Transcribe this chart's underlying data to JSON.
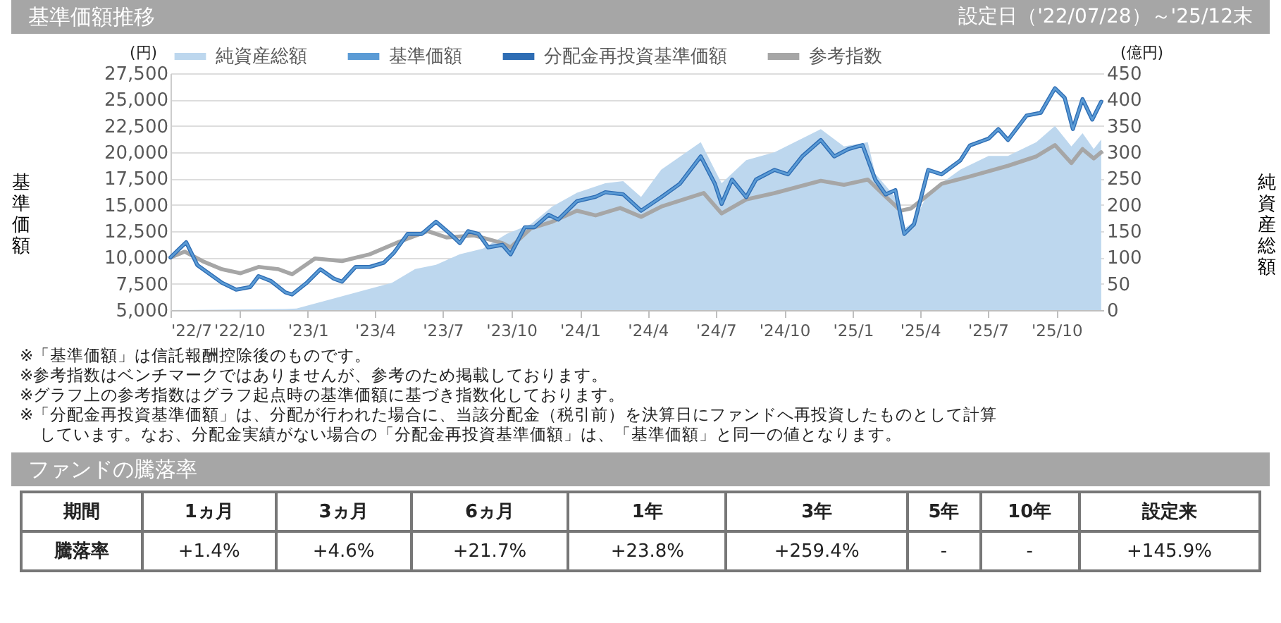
{
  "chart_data": [
    {
      "type": "line",
      "title": "基準価額推移",
      "subtitle": "設定日（'22/07/28）～'25/12末",
      "ylabel": "基準価額",
      "y2label": "純資産総額",
      "annotations": [
        "(円)",
        "(億円)",
        "※「基準価額」は信託報酬控除後のものです。",
        "※参考指数はベンチマークではありませんが、参考のため掲載しております。",
        "※グラフ上の参考指数はグラフ起点時の基準価額に基づき指数化しております。",
        "※「分配金再投資基準価額」は、分配が行われた場合に、当該分配金（税引前）を決算日にファンドへ再投資したものとして計算しています。なお、分配金実績がない場合の「分配金再投資基準価額」は、「基準価額」と同一の値となります。"
      ],
      "xlim": [
        "2022-07-28",
        "2025-12-30"
      ],
      "xticks": [
        {
          "value": "2022-07-28",
          "label": "'22/7"
        },
        {
          "value": "2022-10-28",
          "label": "'22/10"
        },
        {
          "value": "2023-01-28",
          "label": "'23/1"
        },
        {
          "value": "2023-04-28",
          "label": "'23/4"
        },
        {
          "value": "2023-07-28",
          "label": "'23/7"
        },
        {
          "value": "2023-10-28",
          "label": "'23/10"
        },
        {
          "value": "2024-01-28",
          "label": "'24/1"
        },
        {
          "value": "2024-04-28",
          "label": "'24/4"
        },
        {
          "value": "2024-07-28",
          "label": "'24/7"
        },
        {
          "value": "2024-10-28",
          "label": "'24/10"
        },
        {
          "value": "2025-01-28",
          "label": "'25/1"
        },
        {
          "value": "2025-04-28",
          "label": "'25/4"
        },
        {
          "value": "2025-07-28",
          "label": "'25/7"
        },
        {
          "value": "2025-10-28",
          "label": "'25/10"
        }
      ],
      "ylim": [
        5000,
        27500
      ],
      "yticks": [
        {
          "value": 5000,
          "label": "5,000"
        },
        {
          "value": 7500,
          "label": "7,500"
        },
        {
          "value": 10000,
          "label": "10,000"
        },
        {
          "value": 12500,
          "label": "12,500"
        },
        {
          "value": 15000,
          "label": "15,000"
        },
        {
          "value": 17500,
          "label": "17,500"
        },
        {
          "value": 20000,
          "label": "20,000"
        },
        {
          "value": 22500,
          "label": "22,500"
        },
        {
          "value": 25000,
          "label": "25,000"
        },
        {
          "value": 27500,
          "label": "27,500"
        }
      ],
      "y2lim": [
        0,
        450
      ],
      "y2ticks": [
        0,
        50,
        100,
        150,
        200,
        250,
        300,
        350,
        400,
        450
      ],
      "grid": "y",
      "legend": "top",
      "line_style": "solid",
      "marker": "none",
      "series": [
        {
          "name": "純資産総額",
          "type": "area",
          "axis": "y2",
          "color": "#bdd7ee",
          "x": [
            "2022-07-28",
            "2022-12-29",
            "2023-01-13",
            "2023-05-21",
            "2023-06-21",
            "2023-07-19",
            "2023-08-20",
            "2023-09-20",
            "2023-10-22",
            "2023-11-23",
            "2023-12-22",
            "2024-01-24",
            "2024-03-02",
            "2024-03-26",
            "2024-04-19",
            "2024-05-16",
            "2024-07-08",
            "2024-08-05",
            "2024-09-07",
            "2024-10-15",
            "2024-12-16",
            "2025-01-16",
            "2025-02-17",
            "2025-02-27",
            "2025-03-26",
            "2025-04-07",
            "2025-04-20",
            "2025-05-09",
            "2025-06-21",
            "2025-07-29",
            "2025-08-24",
            "2025-10-01",
            "2025-10-26",
            "2025-11-17",
            "2025-12-02",
            "2025-12-17",
            "2025-12-27"
          ],
          "values": [
            0,
            2,
            3,
            52,
            78,
            86,
            106,
            117,
            145,
            163,
            197,
            223,
            241,
            245,
            215,
            267,
            319,
            241,
            285,
            300,
            344,
            311,
            319,
            259,
            215,
            155,
            168,
            223,
            267,
            293,
            293,
            319,
            350,
            311,
            336,
            306,
            324
          ]
        },
        {
          "name": "基準価額",
          "color": "#5b9bd5",
          "x": [
            "2022-07-28",
            "2022-08-18",
            "2022-09-02",
            "2022-10-05",
            "2022-10-24",
            "2022-11-12",
            "2022-11-23",
            "2022-12-10",
            "2022-12-29",
            "2023-01-07",
            "2023-01-26",
            "2023-02-14",
            "2023-03-04",
            "2023-03-15",
            "2023-04-02",
            "2023-04-21",
            "2023-05-10",
            "2023-05-23",
            "2023-06-11",
            "2023-06-30",
            "2023-07-19",
            "2023-08-07",
            "2023-08-20",
            "2023-08-31",
            "2023-09-14",
            "2023-09-27",
            "2023-10-16",
            "2023-10-27",
            "2023-11-04",
            "2023-11-15",
            "2023-11-28",
            "2023-12-17",
            "2023-12-30",
            "2024-01-24",
            "2024-02-18",
            "2024-03-02",
            "2024-03-26",
            "2024-04-19",
            "2024-05-16",
            "2024-06-10",
            "2024-07-08",
            "2024-07-27",
            "2024-08-05",
            "2024-08-19",
            "2024-09-07",
            "2024-09-20",
            "2024-10-15",
            "2024-11-02",
            "2024-11-21",
            "2024-12-16",
            "2025-01-03",
            "2025-01-22",
            "2025-02-10",
            "2025-02-27",
            "2025-03-13",
            "2025-03-26",
            "2025-04-07",
            "2025-04-20",
            "2025-05-09",
            "2025-05-27",
            "2025-06-21",
            "2025-07-04",
            "2025-07-29",
            "2025-08-11",
            "2025-08-24",
            "2025-09-18",
            "2025-10-07",
            "2025-10-26",
            "2025-11-08",
            "2025-11-19",
            "2025-12-02",
            "2025-12-15",
            "2025-12-27"
          ],
          "values": [
            10000,
            11450,
            9270,
            7590,
            6940,
            7200,
            8230,
            7750,
            6680,
            6480,
            7550,
            8880,
            7990,
            7700,
            9100,
            9100,
            9500,
            10400,
            12240,
            12240,
            13400,
            12240,
            11370,
            12500,
            12240,
            10960,
            11200,
            10300,
            11370,
            12870,
            12870,
            14050,
            13600,
            15340,
            15770,
            16200,
            16000,
            14440,
            15730,
            17000,
            19600,
            17000,
            15090,
            17400,
            15730,
            17400,
            18320,
            17900,
            19600,
            21160,
            19600,
            20300,
            20680,
            17400,
            15990,
            16400,
            12240,
            13150,
            18320,
            17900,
            19220,
            20650,
            21290,
            22200,
            21160,
            23490,
            23750,
            26080,
            25170,
            22200,
            25040,
            23100,
            24800
          ]
        },
        {
          "name": "分配金再投資基準価額",
          "color": "#2e6db4",
          "x": [
            "2022-07-28",
            "2022-08-18",
            "2022-09-02",
            "2022-10-05",
            "2022-10-24",
            "2022-11-12",
            "2022-11-23",
            "2022-12-10",
            "2022-12-29",
            "2023-01-07",
            "2023-01-26",
            "2023-02-14",
            "2023-03-04",
            "2023-03-15",
            "2023-04-02",
            "2023-04-21",
            "2023-05-10",
            "2023-05-23",
            "2023-06-11",
            "2023-06-30",
            "2023-07-19",
            "2023-08-07",
            "2023-08-20",
            "2023-08-31",
            "2023-09-14",
            "2023-09-27",
            "2023-10-16",
            "2023-10-27",
            "2023-11-04",
            "2023-11-15",
            "2023-11-28",
            "2023-12-17",
            "2023-12-30",
            "2024-01-24",
            "2024-02-18",
            "2024-03-02",
            "2024-03-26",
            "2024-04-19",
            "2024-05-16",
            "2024-06-10",
            "2024-07-08",
            "2024-07-27",
            "2024-08-05",
            "2024-08-19",
            "2024-09-07",
            "2024-09-20",
            "2024-10-15",
            "2024-11-02",
            "2024-11-21",
            "2024-12-16",
            "2025-01-03",
            "2025-01-22",
            "2025-02-10",
            "2025-02-27",
            "2025-03-13",
            "2025-03-26",
            "2025-04-07",
            "2025-04-20",
            "2025-05-09",
            "2025-05-27",
            "2025-06-21",
            "2025-07-04",
            "2025-07-29",
            "2025-08-11",
            "2025-08-24",
            "2025-09-18",
            "2025-10-07",
            "2025-10-26",
            "2025-11-08",
            "2025-11-19",
            "2025-12-02",
            "2025-12-15",
            "2025-12-27"
          ],
          "values": [
            10000,
            11450,
            9270,
            7590,
            6940,
            7200,
            8230,
            7750,
            6680,
            6480,
            7550,
            8880,
            7990,
            7700,
            9100,
            9100,
            9500,
            10400,
            12240,
            12240,
            13400,
            12240,
            11370,
            12500,
            12240,
            10960,
            11200,
            10300,
            11370,
            12870,
            12870,
            14050,
            13600,
            15340,
            15770,
            16200,
            16000,
            14440,
            15730,
            17000,
            19600,
            17000,
            15090,
            17400,
            15730,
            17400,
            18320,
            17900,
            19600,
            21160,
            19600,
            20300,
            20680,
            17400,
            15990,
            16400,
            12240,
            13150,
            18320,
            17900,
            19220,
            20650,
            21290,
            22200,
            21160,
            23490,
            23750,
            26080,
            25170,
            22200,
            25040,
            23100,
            24800
          ]
        },
        {
          "name": "参考指数",
          "color": "#a6a6a6",
          "x": [
            "2022-07-28",
            "2022-08-16",
            "2022-09-09",
            "2022-10-05",
            "2022-10-30",
            "2022-11-23",
            "2022-12-20",
            "2023-01-07",
            "2023-02-07",
            "2023-03-15",
            "2023-04-21",
            "2023-05-30",
            "2023-07-08",
            "2023-08-02",
            "2023-09-08",
            "2023-10-16",
            "2023-10-27",
            "2023-11-23",
            "2023-12-22",
            "2024-01-24",
            "2024-02-18",
            "2024-03-22",
            "2024-04-19",
            "2024-05-16",
            "2024-07-12",
            "2024-08-05",
            "2024-09-07",
            "2024-10-15",
            "2024-12-16",
            "2025-01-16",
            "2025-02-17",
            "2025-03-08",
            "2025-04-02",
            "2025-04-16",
            "2025-05-05",
            "2025-05-27",
            "2025-07-04",
            "2025-08-24",
            "2025-10-01",
            "2025-10-26",
            "2025-11-17",
            "2025-12-02",
            "2025-12-17",
            "2025-12-27"
          ],
          "values": [
            10000,
            10560,
            9650,
            8880,
            8500,
            9100,
            8880,
            8400,
            9910,
            9650,
            10300,
            11470,
            12500,
            11900,
            12100,
            11370,
            10960,
            12760,
            13400,
            14440,
            14000,
            14700,
            13860,
            14830,
            16120,
            14180,
            15510,
            16120,
            17290,
            16900,
            17400,
            16120,
            14440,
            14660,
            15730,
            17000,
            17700,
            18710,
            19600,
            20680,
            18970,
            20300,
            19400,
            20000
          ]
        }
      ]
    },
    {
      "type": "other",
      "title": "ファンドの騰落率",
      "xlabel": "期間",
      "ylabel": "騰落率",
      "categories": [
        "1ヵ月",
        "3ヵ月",
        "6ヵ月",
        "1年",
        "3年",
        "5年",
        "10年",
        "設定来"
      ],
      "value_labels": [
        "+1.4%",
        "+4.6%",
        "+21.7%",
        "+23.8%",
        "+259.4%",
        "-",
        "-",
        "+145.9%"
      ]
    }
  ]
}
